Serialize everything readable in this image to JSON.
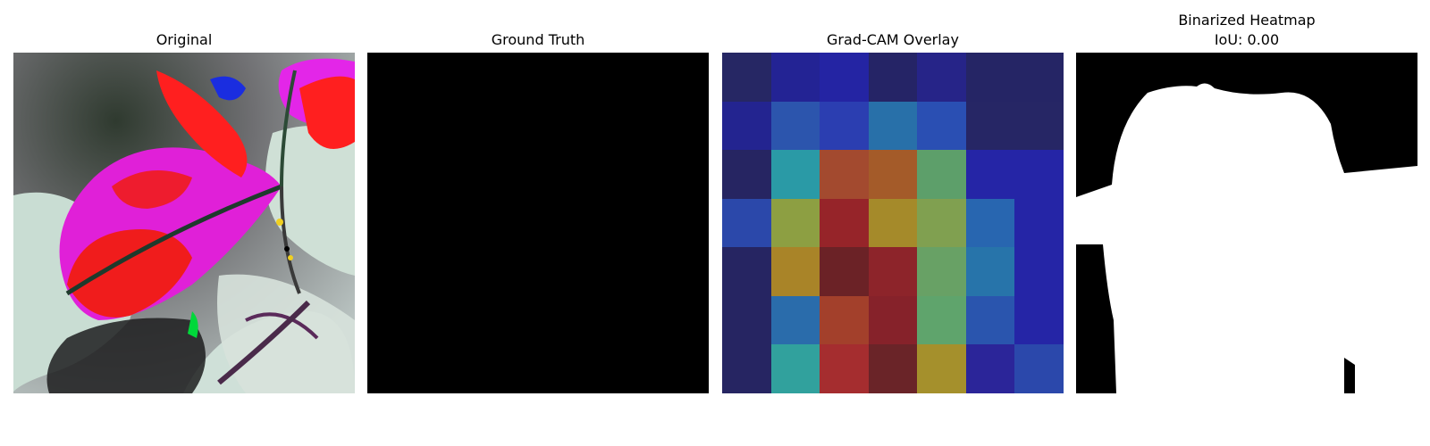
{
  "panels": {
    "original": {
      "title": "Original"
    },
    "ground_truth": {
      "title": "Ground Truth"
    },
    "gradcam": {
      "title": "Grad-CAM Overlay",
      "cells": [
        [
          "#262764",
          "#232394",
          "#2424a3",
          "#252466",
          "#262488",
          "#252565",
          "#252565"
        ],
        [
          "#232490",
          "#2c55ad",
          "#2b3eb1",
          "#2870a9",
          "#2a4fb3",
          "#262665",
          "#262665"
        ],
        [
          "#262562",
          "#2a9aa6",
          "#a34a2f",
          "#a45b29",
          "#5d9f6a",
          "#2525a6",
          "#2525a6"
        ],
        [
          "#2b48aa",
          "#8d9f42",
          "#962429",
          "#a58a2a",
          "#80a050",
          "#2866b0",
          "#2525a6"
        ],
        [
          "#262562",
          "#a98428",
          "#6b2226",
          "#8d242a",
          "#68a165",
          "#2774aa",
          "#2525a6"
        ],
        [
          "#262562",
          "#2a6cab",
          "#a3402b",
          "#86222a",
          "#5fa46c",
          "#2a55ae",
          "#2525a6"
        ],
        [
          "#262562",
          "#31a19d",
          "#a52d2f",
          "#6a2428",
          "#a5902c",
          "#2b2599",
          "#2b48ab"
        ]
      ]
    },
    "binarized": {
      "title_line1": "Binarized Heatmap",
      "title_line2": "IoU: 0.00"
    }
  }
}
